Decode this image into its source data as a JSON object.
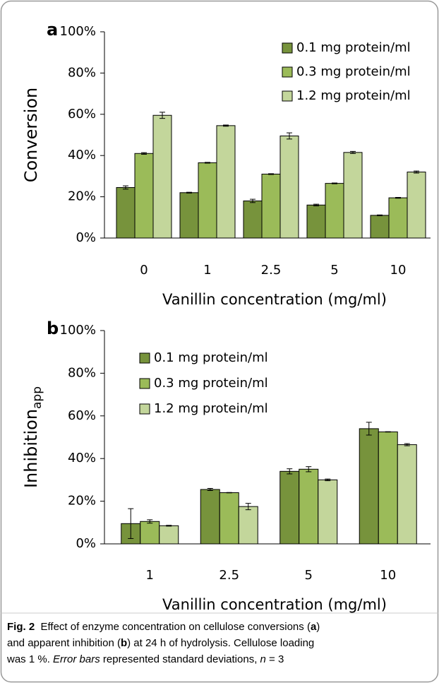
{
  "chart_data": [
    {
      "type": "bar",
      "panel_label": "a",
      "ylabel": "Conversion",
      "xlabel": "Vanillin concentration (mg/ml)",
      "categories": [
        "0",
        "1",
        "2.5",
        "5",
        "10"
      ],
      "series": [
        {
          "name": "0.1 mg protein/ml",
          "color": "#77933c",
          "values": [
            24.5,
            22,
            18,
            16,
            11
          ],
          "errors": [
            0.8,
            0.2,
            0.8,
            0.4,
            0.2
          ]
        },
        {
          "name": "0.3 mg protein/ml",
          "color": "#9bbb59",
          "values": [
            41,
            36.5,
            31,
            26.5,
            19.5
          ],
          "errors": [
            0.4,
            0.2,
            0.2,
            0.2,
            0.2
          ]
        },
        {
          "name": "1.2 mg protein/ml",
          "color": "#c3d69b",
          "values": [
            59.5,
            54.5,
            49.5,
            41.5,
            32
          ],
          "errors": [
            1.5,
            0.3,
            1.5,
            0.5,
            0.5
          ]
        }
      ],
      "ylim": [
        0,
        100
      ],
      "yticks": [
        {
          "value": 0,
          "label": "0%"
        },
        {
          "value": 20,
          "label": "20%"
        },
        {
          "value": 40,
          "label": "40%"
        },
        {
          "value": 60,
          "label": "60%"
        },
        {
          "value": 80,
          "label": "80%"
        },
        {
          "value": 100,
          "label": "100%"
        }
      ],
      "grid": false
    },
    {
      "type": "bar",
      "panel_label": "b",
      "ylabel": "Inhibition",
      "ylabel_sub": "app",
      "xlabel": "Vanillin concentration (mg/ml)",
      "categories": [
        "1",
        "2.5",
        "5",
        "10"
      ],
      "series": [
        {
          "name": "0.1 mg protein/ml",
          "color": "#77933c",
          "values": [
            9.5,
            25.5,
            34,
            54
          ],
          "errors": [
            7,
            0.5,
            1.2,
            3
          ]
        },
        {
          "name": "0.3 mg protein/ml",
          "color": "#9bbb59",
          "values": [
            10.5,
            24,
            35,
            52.5
          ],
          "errors": [
            0.8,
            0.1,
            1.2,
            0.1
          ]
        },
        {
          "name": "1.2 mg protein/ml",
          "color": "#c3d69b",
          "values": [
            8.5,
            17.5,
            30,
            46.5
          ],
          "errors": [
            0.2,
            1.5,
            0.4,
            0.5
          ]
        }
      ],
      "ylim": [
        0,
        100
      ],
      "yticks": [
        {
          "value": 0,
          "label": "0%"
        },
        {
          "value": 20,
          "label": "20%"
        },
        {
          "value": 40,
          "label": "40%"
        },
        {
          "value": 60,
          "label": "60%"
        },
        {
          "value": 80,
          "label": "80%"
        },
        {
          "value": 100,
          "label": "100%"
        }
      ],
      "grid": false
    }
  ],
  "caption": {
    "lines": [
      [
        {
          "text": "Fig. 2",
          "style": "bold"
        },
        {
          "text": "  Effect of enzyme concentration on cellulose conversions (",
          "style": "normal"
        },
        {
          "text": "a",
          "style": "bold"
        },
        {
          "text": ")",
          "style": "normal"
        }
      ],
      [
        {
          "text": "and apparent inhibition (",
          "style": "normal"
        },
        {
          "text": "b",
          "style": "bold"
        },
        {
          "text": ") at 24 h of hydrolysis. Cellulose loading",
          "style": "normal"
        }
      ],
      [
        {
          "text": "was 1 %. ",
          "style": "normal"
        },
        {
          "text": "Error bars",
          "style": "italic"
        },
        {
          "text": " represented standard deviations, ",
          "style": "normal"
        },
        {
          "text": "n",
          "style": "italic"
        },
        {
          "text": " = 3",
          "style": "normal"
        }
      ]
    ]
  }
}
